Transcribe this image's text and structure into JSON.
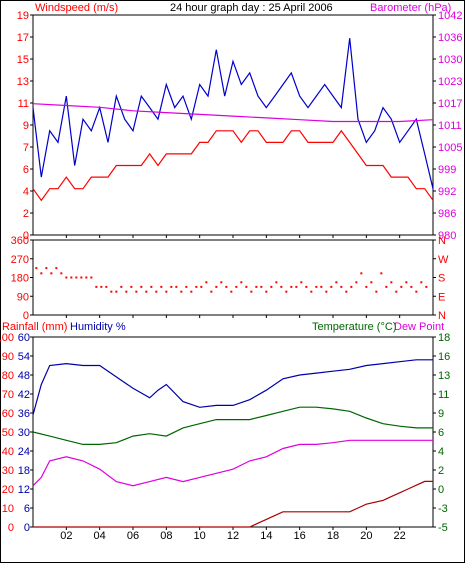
{
  "colors": {
    "wind": "#ff0000",
    "gust": "#0000cc",
    "baro": "#dd00dd",
    "dir": "#ff0000",
    "rain": "#ff0000",
    "humidity": "#0000aa",
    "temperature": "#006600",
    "dewpoint": "#dd00dd",
    "rainline": "#aa0000"
  },
  "chart_data": [
    {
      "type": "line",
      "title": "24 hour graph day : 25 April 2006",
      "ylabel": "Windspeed (m/s)",
      "y2label": "Barometer (hPa)",
      "xlim": [
        0,
        24
      ],
      "ylim": [
        0,
        19
      ],
      "y2lim": [
        980,
        1042
      ],
      "x_ticks": [
        "02",
        "04",
        "06",
        "08",
        "10",
        "12",
        "14",
        "16",
        "18",
        "20",
        "22"
      ],
      "y_ticks": [
        "0",
        "2",
        "4",
        "6",
        "7",
        "9",
        "11",
        "13",
        "15",
        "17",
        "19"
      ],
      "y2_ticks": [
        "980",
        "986",
        "992",
        "999",
        "1005",
        "1011",
        "1017",
        "1023",
        "1030",
        "1036",
        "1042"
      ],
      "series": [
        {
          "key": "gust",
          "x": [
            0,
            0.5,
            1,
            1.5,
            2,
            2.5,
            3,
            3.5,
            4,
            4.5,
            5,
            5.5,
            6,
            6.5,
            7,
            7.5,
            8,
            8.5,
            9,
            9.5,
            10,
            10.5,
            11,
            11.5,
            12,
            12.5,
            13,
            13.5,
            14,
            14.5,
            15,
            15.5,
            16,
            16.5,
            17,
            17.5,
            18,
            18.5,
            19,
            19.5,
            20,
            20.5,
            21,
            21.5,
            22,
            22.5,
            23,
            23.5,
            24
          ],
          "values": [
            11,
            5,
            9,
            8,
            12,
            6,
            10,
            9,
            11,
            8,
            12,
            10,
            9,
            12,
            11,
            10,
            13,
            11,
            12,
            10,
            13,
            12,
            16,
            12,
            15,
            13,
            14,
            12,
            11,
            12,
            13,
            14,
            12,
            11,
            12,
            13,
            12,
            11,
            17,
            10,
            8,
            9,
            11,
            10,
            8,
            9,
            10,
            7,
            4
          ]
        },
        {
          "key": "wind",
          "x": [
            0,
            0.5,
            1,
            1.5,
            2,
            2.5,
            3,
            3.5,
            4,
            4.5,
            5,
            5.5,
            6,
            6.5,
            7,
            7.5,
            8,
            8.5,
            9,
            9.5,
            10,
            10.5,
            11,
            11.5,
            12,
            12.5,
            13,
            13.5,
            14,
            14.5,
            15,
            15.5,
            16,
            16.5,
            17,
            17.5,
            18,
            18.5,
            19,
            19.5,
            20,
            20.5,
            21,
            21.5,
            22,
            22.5,
            23,
            23.5,
            24
          ],
          "values": [
            4,
            3,
            4,
            4,
            5,
            4,
            4,
            5,
            5,
            5,
            6,
            6,
            6,
            6,
            7,
            6,
            7,
            7,
            7,
            7,
            8,
            8,
            9,
            9,
            9,
            8,
            9,
            9,
            8,
            8,
            8,
            9,
            9,
            8,
            8,
            8,
            8,
            9,
            8,
            7,
            6,
            6,
            6,
            5,
            5,
            5,
            4,
            4,
            3
          ]
        },
        {
          "key": "baro",
          "axis": "right",
          "x": [
            0,
            2,
            4,
            6,
            8,
            10,
            12,
            14,
            16,
            18,
            20,
            22,
            24
          ],
          "values": [
            1017,
            1016.5,
            1016,
            1015,
            1014.5,
            1014,
            1013.5,
            1013,
            1012.5,
            1012,
            1012,
            1012,
            1012.5
          ]
        }
      ]
    },
    {
      "type": "scatter",
      "ylabel": "",
      "xlim": [
        0,
        24
      ],
      "ylim": [
        0,
        360
      ],
      "x_ticks": [
        "02",
        "04",
        "06",
        "08",
        "10",
        "12",
        "14",
        "16",
        "18",
        "20",
        "22"
      ],
      "y_ticks": [
        "0",
        "90",
        "180",
        "270",
        "360"
      ],
      "y2_ticks": [
        "N",
        "E",
        "S",
        "W",
        "N"
      ],
      "series": [
        {
          "key": "dir",
          "x": [
            0.2,
            0.5,
            0.8,
            1.1,
            1.4,
            1.7,
            2.0,
            2.3,
            2.6,
            2.9,
            3.2,
            3.5,
            3.8,
            4.1,
            4.4,
            4.7,
            5.0,
            5.3,
            5.6,
            5.9,
            6.2,
            6.5,
            6.8,
            7.1,
            7.4,
            7.7,
            8.0,
            8.3,
            8.6,
            8.9,
            9.2,
            9.5,
            9.8,
            10.1,
            10.4,
            10.7,
            11.0,
            11.3,
            11.6,
            11.9,
            12.2,
            12.5,
            12.8,
            13.1,
            13.4,
            13.7,
            14.0,
            14.3,
            14.6,
            14.9,
            15.2,
            15.5,
            15.8,
            16.1,
            16.4,
            16.7,
            17.0,
            17.3,
            17.6,
            17.9,
            18.2,
            18.5,
            18.8,
            19.1,
            19.4,
            19.7,
            20.0,
            20.3,
            20.6,
            20.9,
            21.2,
            21.5,
            21.8,
            22.1,
            22.4,
            22.7,
            23.0,
            23.3,
            23.6
          ],
          "values": [
            225,
            200,
            225,
            200,
            225,
            200,
            180,
            180,
            180,
            180,
            180,
            180,
            135,
            135,
            135,
            112,
            112,
            135,
            112,
            135,
            112,
            135,
            112,
            135,
            112,
            135,
            112,
            135,
            135,
            112,
            135,
            112,
            135,
            135,
            157,
            112,
            135,
            157,
            135,
            112,
            135,
            157,
            135,
            112,
            135,
            135,
            112,
            135,
            157,
            135,
            112,
            135,
            135,
            157,
            135,
            112,
            135,
            135,
            112,
            135,
            157,
            135,
            112,
            135,
            157,
            200,
            135,
            157,
            112,
            200,
            135,
            157,
            112,
            135,
            157,
            135,
            112,
            157,
            135
          ]
        }
      ]
    },
    {
      "type": "line",
      "ylabel": "Rainfall (mm)",
      "ylabel2": "Humidity %",
      "y2label": "Temperature (°C)",
      "y3label": "Dew Point",
      "xlim": [
        0,
        24
      ],
      "ylim": [
        0,
        100
      ],
      "y2lim": [
        -5,
        18
      ],
      "x_ticks": [
        "02",
        "04",
        "06",
        "08",
        "10",
        "12",
        "14",
        "16",
        "18",
        "20",
        "22"
      ],
      "y_ticks": [
        "0",
        "10",
        "20",
        "30",
        "40",
        "50",
        "60",
        "70",
        "80",
        "90",
        "100"
      ],
      "y_ticks_inner": [
        "0",
        "6",
        "12",
        "18",
        "24",
        "30",
        "36",
        "42",
        "48",
        "54",
        "60"
      ],
      "y2_ticks": [
        "-5",
        "-3",
        "0",
        "2",
        "4",
        "6",
        "9",
        "11",
        "13",
        "16",
        "18"
      ],
      "y2_ticks_inner": [
        "",
        "",
        "",
        "",
        "",
        "",
        "",
        "",
        "",
        "",
        ""
      ],
      "series": [
        {
          "key": "humidity",
          "x": [
            0,
            0.5,
            1,
            2,
            3,
            4,
            5,
            6,
            7,
            7.5,
            8,
            9,
            10,
            11,
            12,
            13,
            14,
            15,
            16,
            17,
            18,
            19,
            20,
            21,
            22,
            23,
            24
          ],
          "values": [
            59,
            75,
            85,
            86,
            85,
            85,
            79,
            73,
            68,
            72,
            75,
            66,
            63,
            64,
            64,
            67,
            72,
            78,
            80,
            81,
            82,
            83,
            85,
            86,
            87,
            88,
            88
          ]
        },
        {
          "key": "temperature",
          "axis": "right",
          "x": [
            0,
            1,
            2,
            3,
            4,
            5,
            6,
            7,
            8,
            9,
            10,
            11,
            12,
            13,
            14,
            15,
            16,
            17,
            18,
            19,
            20,
            21,
            22,
            23,
            24
          ],
          "values": [
            6.5,
            6.0,
            5.5,
            5.0,
            5.0,
            5.2,
            6.0,
            6.3,
            6.0,
            7.0,
            7.5,
            8.0,
            8.0,
            8.0,
            8.5,
            9.0,
            9.5,
            9.5,
            9.3,
            9.0,
            8.2,
            7.5,
            7.2,
            7.0,
            7.0
          ]
        },
        {
          "key": "dewpoint",
          "axis": "right",
          "x": [
            0,
            0.5,
            1,
            2,
            3,
            4,
            5,
            6,
            7,
            8,
            9,
            10,
            11,
            12,
            13,
            14,
            15,
            16,
            17,
            18,
            19,
            20,
            21,
            22,
            23,
            24
          ],
          "values": [
            0,
            1,
            3,
            3.5,
            3,
            2,
            0.5,
            0,
            0.5,
            1,
            0.5,
            1,
            1.5,
            2,
            3,
            3.5,
            4.5,
            5,
            5,
            5.2,
            5.5,
            5.5,
            5.5,
            5.5,
            5.5,
            5.5
          ]
        },
        {
          "key": "rainline",
          "x": [
            0,
            13,
            13.5,
            14,
            14.5,
            15,
            16,
            17,
            18,
            19,
            19.5,
            20,
            21,
            21.5,
            22,
            22.5,
            23,
            23.5,
            24
          ],
          "values": [
            0,
            0,
            2,
            4,
            6,
            8,
            8,
            8,
            8,
            8,
            10,
            12,
            14,
            16,
            18,
            20,
            22,
            24,
            24
          ]
        }
      ]
    }
  ],
  "labels": {
    "panel1_left": "Windspeed (m/s)",
    "panel1_center": "24 hour graph day : 25 April 2006",
    "panel1_right": "Barometer (hPa)",
    "panel3_left1": "Rainfall (mm)",
    "panel3_left2": "Humidity %",
    "panel3_right1": "Temperature (°C)",
    "panel3_right2": "Dew Point"
  }
}
